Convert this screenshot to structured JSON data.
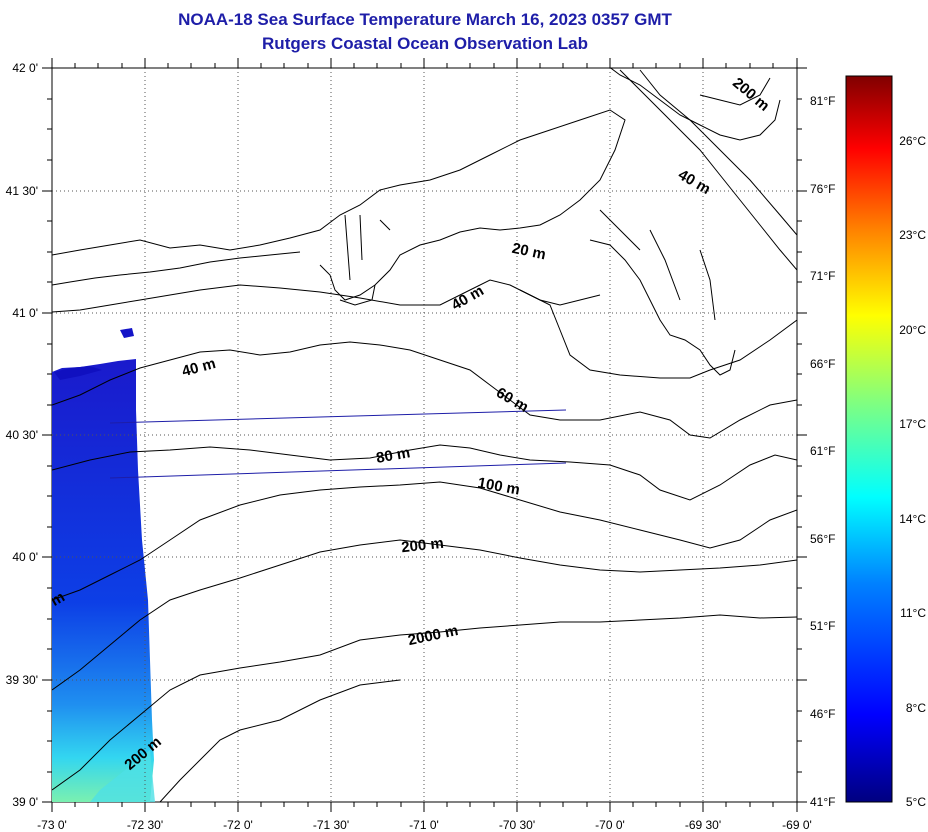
{
  "header": {
    "title": "NOAA-18 Sea Surface Temperature March 16, 2023 0357 GMT",
    "subtitle": "Rutgers Coastal Ocean Observation Lab"
  },
  "map": {
    "lat_labels": [
      "42 0'",
      "41 30'",
      "41 0'",
      "40 30'",
      "40 0'",
      "39 30'",
      "39 0'"
    ],
    "lon_labels": [
      "-73 0'",
      "-72 30'",
      "-72 0'",
      "-71 30'",
      "-71 0'",
      "-70 30'",
      "-70 0'",
      "-69 30'",
      "-69 0'"
    ],
    "contour_labels": [
      {
        "text": "200 m"
      },
      {
        "text": "40 m"
      },
      {
        "text": "20 m"
      },
      {
        "text": "40 m"
      },
      {
        "text": "40 m"
      },
      {
        "text": "60 m"
      },
      {
        "text": "80 m"
      },
      {
        "text": "100 m"
      },
      {
        "text": "200 m"
      },
      {
        "text": "2000 m"
      },
      {
        "text": "200 m"
      },
      {
        "text": "m"
      }
    ],
    "grid": true
  },
  "colorbar": {
    "celsius": [
      "5°C",
      "8°C",
      "11°C",
      "14°C",
      "17°C",
      "20°C",
      "23°C",
      "26°C"
    ],
    "fahrenheit": [
      "41°F",
      "46°F",
      "51°F",
      "56°F",
      "61°F",
      "66°F",
      "71°F",
      "76°F",
      "81°F"
    ],
    "colors": [
      "#000080",
      "#0000ff",
      "#0080ff",
      "#00ffff",
      "#80ff80",
      "#ffff00",
      "#ff8000",
      "#ff0000",
      "#800000"
    ]
  }
}
